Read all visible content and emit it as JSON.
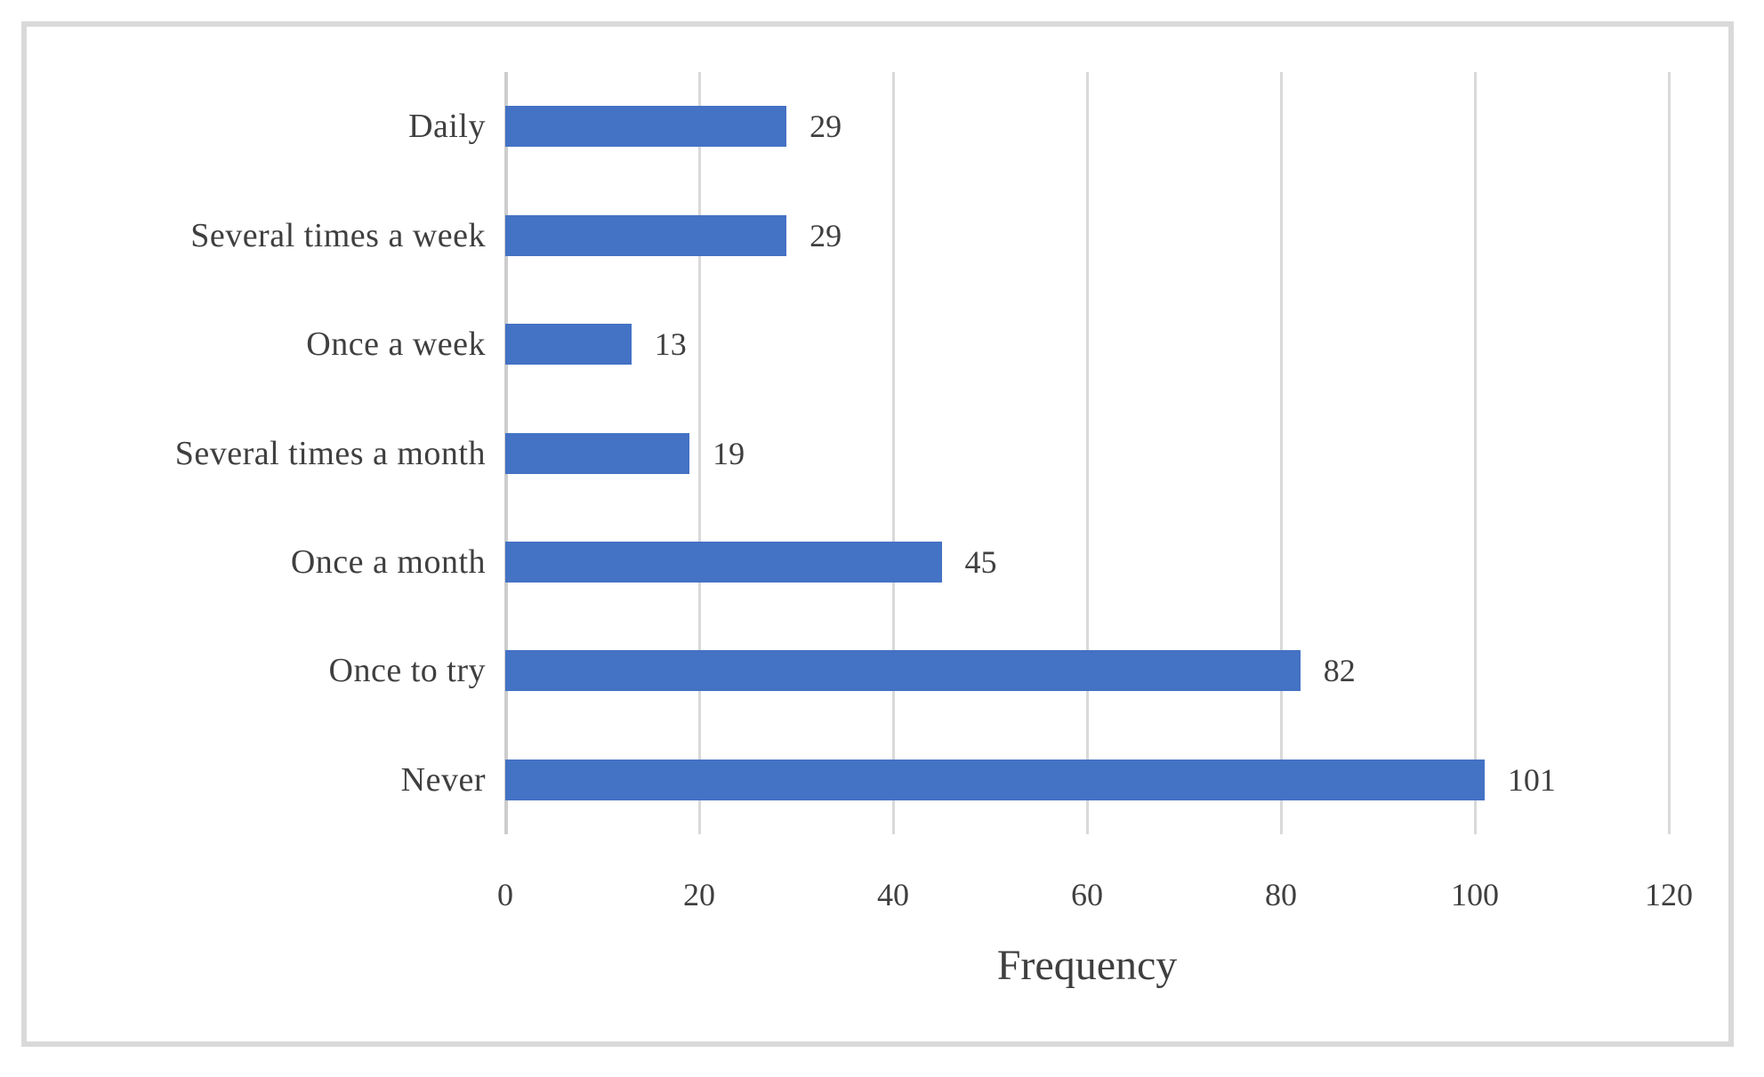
{
  "figure": {
    "background_color": "#ffffff",
    "frame_border_color": "#d9d9d9"
  },
  "chart_data": {
    "type": "bar",
    "orientation": "horizontal",
    "title": "",
    "xlabel": "Frequency",
    "ylabel": "",
    "categories": [
      "Daily",
      "Several times a week",
      "Once a week",
      "Several times a month",
      "Once a month",
      "Once to try",
      "Never"
    ],
    "values": [
      29,
      29,
      13,
      19,
      45,
      82,
      101
    ],
    "data_labels": [
      "29",
      "29",
      "13",
      "19",
      "45",
      "82",
      "101"
    ],
    "x_ticks": [
      0,
      20,
      40,
      60,
      80,
      100,
      120
    ],
    "xlim": [
      0,
      120
    ],
    "grid": true,
    "legend": false,
    "bar_color": "#4472c4",
    "gridline_color": "#d9d9d9",
    "text_color": "#3f3f3f"
  }
}
